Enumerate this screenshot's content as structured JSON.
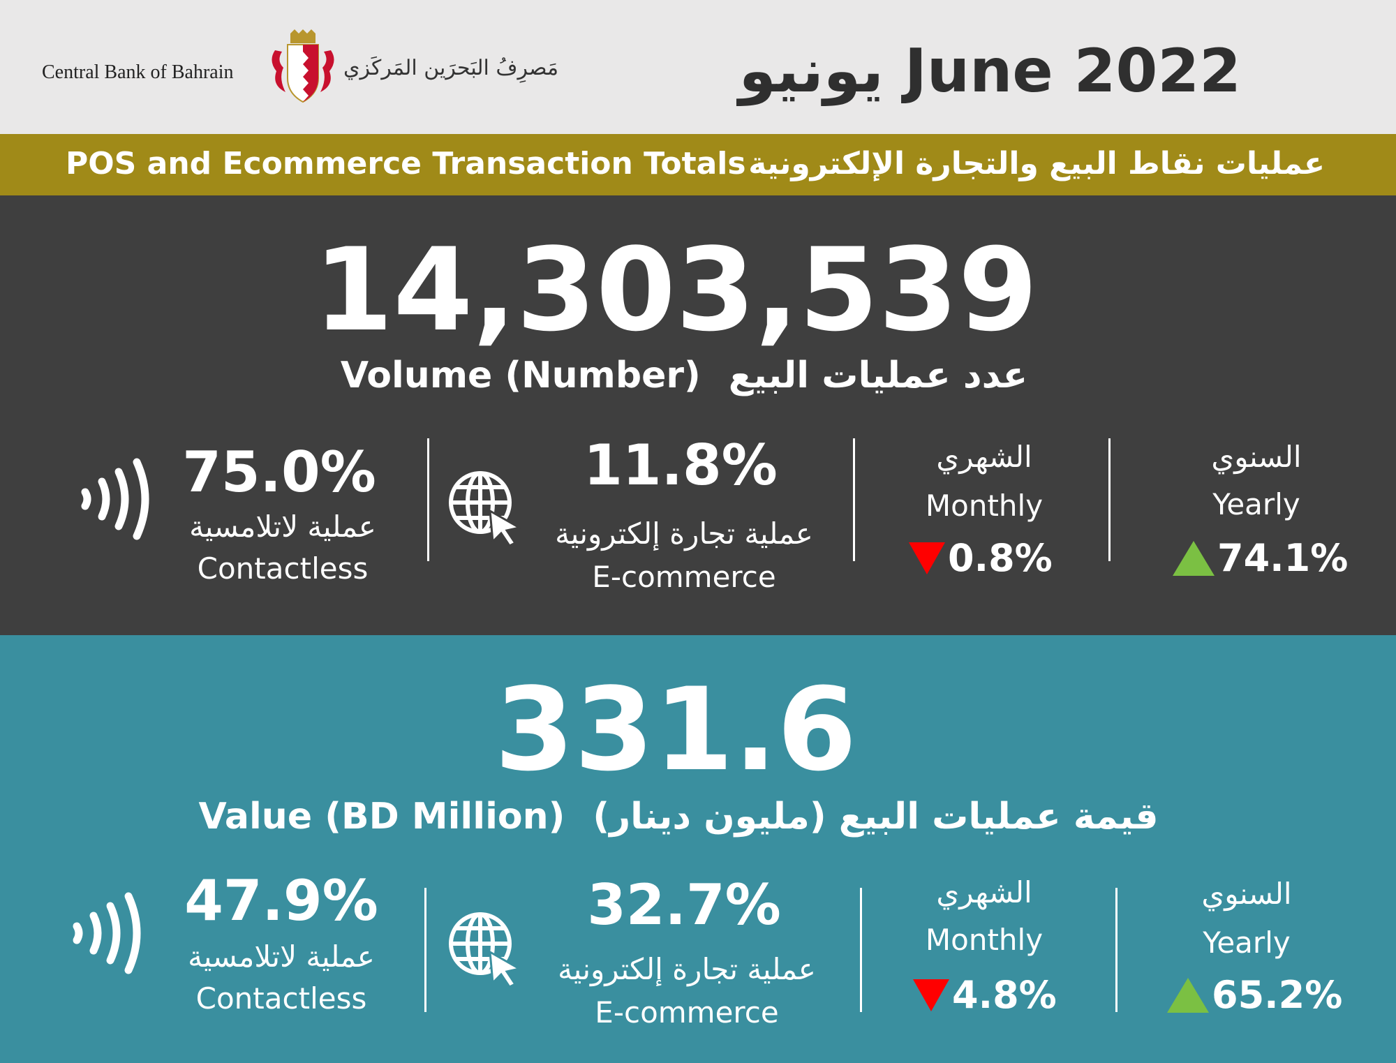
{
  "header": {
    "bank_name_en": "Central Bank of Bahrain",
    "bank_name_ar": "مَصرِفُ البَحرَين المَركَزي",
    "title": "يونيو June 2022",
    "logo_icon": "bahrain-crest-icon"
  },
  "subtitle": {
    "en": "POS and Ecommerce Transaction Totals",
    "ar": "عمليات نقاط البيع والتجارة الإلكترونية"
  },
  "volume": {
    "total": "14,303,539",
    "label_en": "Volume (Number)",
    "label_ar": "عدد عمليات البيع",
    "contactless": {
      "pct": "75.0%",
      "label_ar": "عملية لاتلامسية",
      "label_en": "Contactless",
      "icon": "contactless-icon"
    },
    "ecommerce": {
      "pct": "11.8%",
      "label_ar": "عملية تجارة إلكترونية",
      "label_en": "E-commerce",
      "icon": "globe-cursor-icon"
    },
    "monthly": {
      "label_ar": "الشهري",
      "label_en": "Monthly",
      "change": "0.8%",
      "direction": "down",
      "color": "#ff0000"
    },
    "yearly": {
      "label_ar": "السنوي",
      "label_en": "Yearly",
      "change": "74.1%",
      "direction": "up",
      "color": "#7bc043"
    }
  },
  "value": {
    "total": "331.6",
    "label_en": "Value (BD Million)",
    "label_ar": "قيمة عمليات البيع (مليون دينار)",
    "contactless": {
      "pct": "47.9%",
      "label_ar": "عملية لاتلامسية",
      "label_en": "Contactless",
      "icon": "contactless-icon"
    },
    "ecommerce": {
      "pct": "32.7%",
      "label_ar": "عملية تجارة إلكترونية",
      "label_en": "E-commerce",
      "icon": "globe-cursor-icon"
    },
    "monthly": {
      "label_ar": "الشهري",
      "label_en": "Monthly",
      "change": "4.8%",
      "direction": "down",
      "color": "#ff0000"
    },
    "yearly": {
      "label_ar": "السنوي",
      "label_en": "Yearly",
      "change": "65.2%",
      "direction": "up",
      "color": "#7bc043"
    }
  },
  "colors": {
    "header_bg": "#e9e8e8",
    "subtitle_bg": "#a08a18",
    "volume_bg": "#3f3f3f",
    "value_bg": "#3a8f9f"
  }
}
